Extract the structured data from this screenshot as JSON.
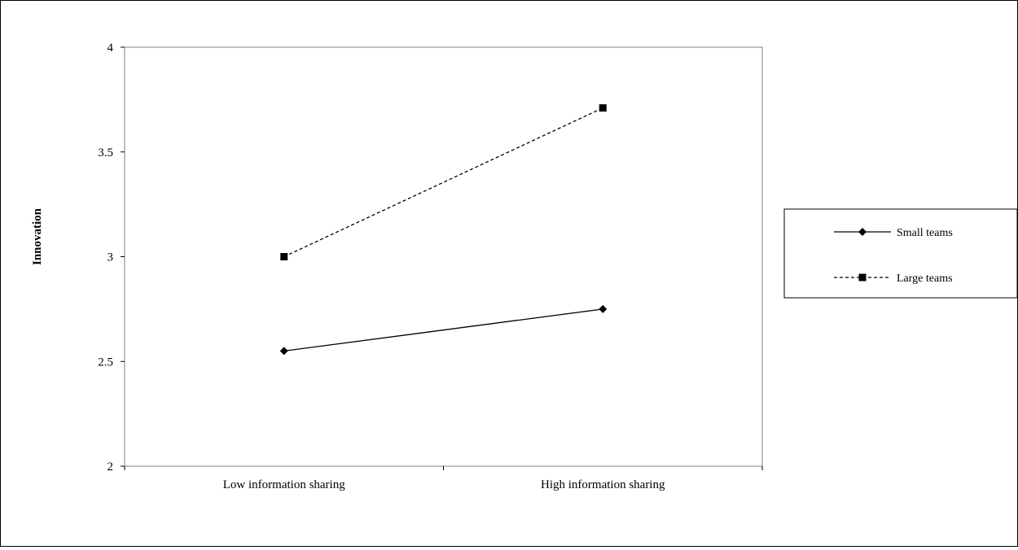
{
  "chart_data": {
    "type": "line",
    "title": "",
    "xlabel": "",
    "ylabel": "Innovation",
    "categories": [
      "Low information sharing",
      "High information sharing"
    ],
    "ylim": [
      2,
      4
    ],
    "yticks": [
      2,
      2.5,
      3,
      3.5,
      4
    ],
    "ytick_labels": [
      "2",
      "2.5",
      "3",
      "3.5",
      "4"
    ],
    "grid": false,
    "legend_position": "right",
    "series": [
      {
        "name": "Small teams",
        "values": [
          2.55,
          2.75
        ],
        "line_style": "solid",
        "marker": "diamond",
        "color": "#000000"
      },
      {
        "name": "Large teams",
        "values": [
          3.0,
          3.71
        ],
        "line_style": "dashed",
        "marker": "square",
        "color": "#000000"
      }
    ]
  }
}
